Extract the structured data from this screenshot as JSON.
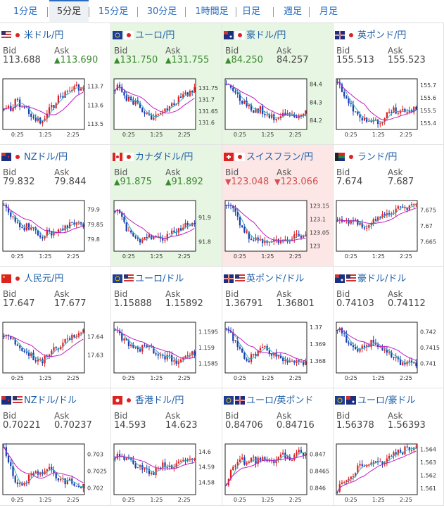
{
  "tabs": [
    {
      "label": "1分足",
      "active": false
    },
    {
      "label": "5分足",
      "active": true
    },
    {
      "label": "15分足",
      "active": false
    },
    {
      "label": "30分足",
      "active": false
    },
    {
      "label": "1時間足",
      "active": false
    },
    {
      "label": "日足",
      "active": false
    },
    {
      "label": "週足",
      "active": false
    },
    {
      "label": "月足",
      "active": false
    }
  ],
  "labels": {
    "bid": "Bid",
    "ask": "Ask"
  },
  "colors": {
    "candle_up": "#e02020",
    "candle_down": "#1a3fb0",
    "ma_short": "#3ab0c0",
    "ma_long": "#c020c0",
    "tile_up": "#e7f6e2",
    "tile_down": "#fce6e6"
  },
  "panels": [
    {
      "title": "米ドル/円",
      "bid": "113.688",
      "ask": "113.690",
      "dir": "",
      "bid_dir": "",
      "ask_dir": "up",
      "flags": [
        "us",
        "jp"
      ],
      "chart_data": {
        "type": "candlestick",
        "x_ticks": [
          "0:25",
          "1:25",
          "2:25"
        ],
        "y_ticks": [
          "113.7",
          "113.6",
          "113.5"
        ],
        "ylim": [
          113.47,
          113.74
        ],
        "shape": [
          0.6,
          0.55,
          0.7,
          0.4,
          0.5,
          0.55,
          0.6,
          0.7,
          0.85,
          0.8,
          0.9,
          0.75,
          0.6,
          0.55,
          0.4,
          0.35,
          0.3,
          0.25,
          0.2,
          0.15,
          0.18,
          0.22
        ]
      }
    },
    {
      "title": "ユーロ/円",
      "bid": "131.750",
      "ask": "131.755",
      "dir": "up",
      "bid_dir": "up",
      "ask_dir": "up",
      "flags": [
        "eu",
        "jp"
      ],
      "chart_data": {
        "type": "candlestick",
        "x_ticks": [
          "0:25",
          "1:25",
          "2:25"
        ],
        "y_ticks": [
          "131.75",
          "131.7",
          "131.65",
          "131.6"
        ],
        "ylim": [
          131.57,
          131.79
        ],
        "shape": [
          0.2,
          0.15,
          0.3,
          0.4,
          0.35,
          0.5,
          0.45,
          0.6,
          0.7,
          0.75,
          0.8,
          0.7,
          0.65,
          0.55,
          0.6,
          0.5,
          0.45,
          0.4,
          0.35,
          0.3,
          0.25,
          0.15
        ]
      }
    },
    {
      "title": "豪ドル/円",
      "bid": "84.250",
      "ask": "84.257",
      "dir": "up",
      "bid_dir": "up",
      "ask_dir": "",
      "flags": [
        "au",
        "jp"
      ],
      "chart_data": {
        "type": "candlestick",
        "x_ticks": [
          "0:25",
          "1:25",
          "2:25"
        ],
        "y_ticks": [
          "84.4",
          "84.3",
          "84.2"
        ],
        "ylim": [
          84.15,
          84.43
        ],
        "shape": [
          0.05,
          0.15,
          0.25,
          0.35,
          0.45,
          0.5,
          0.55,
          0.6,
          0.65,
          0.6,
          0.7,
          0.75,
          0.72,
          0.8,
          0.75,
          0.7,
          0.65,
          0.7,
          0.75,
          0.72,
          0.7,
          0.68
        ]
      }
    },
    {
      "title": "英ポンド/円",
      "bid": "155.513",
      "ask": "155.523",
      "dir": "",
      "bid_dir": "",
      "ask_dir": "",
      "flags": [
        "gb",
        "jp"
      ],
      "chart_data": {
        "type": "candlestick",
        "x_ticks": [
          "0:25",
          "1:25",
          "2:25"
        ],
        "y_ticks": [
          "155.7",
          "155.6",
          "155.5",
          "155.4"
        ],
        "ylim": [
          155.35,
          155.75
        ],
        "shape": [
          0.1,
          0.2,
          0.35,
          0.5,
          0.6,
          0.7,
          0.75,
          0.8,
          0.85,
          0.8,
          0.75,
          0.85,
          0.8,
          0.7,
          0.65,
          0.6,
          0.7,
          0.65,
          0.6,
          0.65,
          0.6,
          0.62
        ]
      }
    },
    {
      "title": "NZドル/円",
      "bid": "79.832",
      "ask": "79.844",
      "dir": "",
      "bid_dir": "",
      "ask_dir": "",
      "flags": [
        "nz",
        "jp"
      ],
      "chart_data": {
        "type": "candlestick",
        "x_ticks": [
          "0:25",
          "1:25",
          "2:25"
        ],
        "y_ticks": [
          "79.9",
          "79.85",
          "79.8"
        ],
        "ylim": [
          79.76,
          79.93
        ],
        "shape": [
          0.1,
          0.15,
          0.3,
          0.4,
          0.5,
          0.55,
          0.5,
          0.55,
          0.6,
          0.65,
          0.7,
          0.65,
          0.6,
          0.7,
          0.65,
          0.6,
          0.55,
          0.5,
          0.45,
          0.5,
          0.45,
          0.48
        ]
      }
    },
    {
      "title": "カナダドル/円",
      "bid": "91.875",
      "ask": "91.892",
      "dir": "up",
      "bid_dir": "up",
      "ask_dir": "up",
      "flags": [
        "ca",
        "jp"
      ],
      "chart_data": {
        "type": "candlestick",
        "x_ticks": [
          "0:25",
          "1:25",
          "2:25"
        ],
        "y_ticks": [
          "91.9",
          "91.8"
        ],
        "ylim": [
          91.76,
          91.97
        ],
        "shape": [
          0.2,
          0.25,
          0.4,
          0.55,
          0.6,
          0.7,
          0.75,
          0.8,
          0.7,
          0.65,
          0.75,
          0.7,
          0.8,
          0.75,
          0.7,
          0.65,
          0.6,
          0.55,
          0.5,
          0.45,
          0.5,
          0.48
        ]
      }
    },
    {
      "title": "スイスフラン/円",
      "bid": "123.048",
      "ask": "123.066",
      "dir": "down",
      "bid_dir": "dn",
      "ask_dir": "dn",
      "flags": [
        "ch",
        "jp"
      ],
      "chart_data": {
        "type": "candlestick",
        "x_ticks": [
          "0:25",
          "1:25",
          "2:25"
        ],
        "y_ticks": [
          "123.15",
          "123.1",
          "123.05",
          "123"
        ],
        "ylim": [
          122.98,
          123.17
        ],
        "shape": [
          0.05,
          0.1,
          0.2,
          0.35,
          0.5,
          0.6,
          0.7,
          0.75,
          0.8,
          0.75,
          0.8,
          0.85,
          0.8,
          0.75,
          0.8,
          0.75,
          0.78,
          0.72,
          0.7,
          0.72,
          0.68,
          0.66
        ]
      }
    },
    {
      "title": "ランド/円",
      "bid": "7.674",
      "ask": "7.687",
      "dir": "",
      "bid_dir": "",
      "ask_dir": "",
      "flags": [
        "za",
        "jp"
      ],
      "chart_data": {
        "type": "candlestick",
        "x_ticks": [
          "0:25",
          "1:25",
          "2:25"
        ],
        "y_ticks": [
          "7.675",
          "7.67",
          "7.665"
        ],
        "ylim": [
          7.662,
          7.678
        ],
        "shape": [
          0.45,
          0.4,
          0.42,
          0.45,
          0.4,
          0.42,
          0.45,
          0.5,
          0.55,
          0.45,
          0.4,
          0.35,
          0.3,
          0.28,
          0.25,
          0.2,
          0.15,
          0.1,
          0.12,
          0.15,
          0.1,
          0.12
        ]
      }
    },
    {
      "title": "人民元/円",
      "bid": "17.647",
      "ask": "17.677",
      "dir": "",
      "bid_dir": "",
      "ask_dir": "",
      "flags": [
        "cn",
        "jp"
      ],
      "chart_data": {
        "type": "candlestick",
        "x_ticks": [
          "0:25",
          "1:25",
          "2:25"
        ],
        "y_ticks": [
          "17.64",
          "17.63"
        ],
        "ylim": [
          17.62,
          17.648
        ],
        "shape": [
          0.3,
          0.2,
          0.35,
          0.4,
          0.5,
          0.6,
          0.55,
          0.65,
          0.7,
          0.75,
          0.8,
          0.7,
          0.6,
          0.55,
          0.5,
          0.45,
          0.4,
          0.35,
          0.3,
          0.25,
          0.2,
          0.15
        ]
      }
    },
    {
      "title": "ユーロ/ドル",
      "bid": "1.15888",
      "ask": "1.15892",
      "dir": "",
      "bid_dir": "",
      "ask_dir": "",
      "flags": [
        "eu",
        "us"
      ],
      "chart_data": {
        "type": "candlestick",
        "x_ticks": [
          "0:25",
          "1:25",
          "2:25"
        ],
        "y_ticks": [
          "1.1595",
          "1.159",
          "1.1585"
        ],
        "ylim": [
          1.1582,
          1.1598
        ],
        "shape": [
          0.15,
          0.25,
          0.35,
          0.4,
          0.45,
          0.5,
          0.55,
          0.5,
          0.45,
          0.5,
          0.55,
          0.6,
          0.65,
          0.7,
          0.65,
          0.75,
          0.8,
          0.75,
          0.7,
          0.65,
          0.6,
          0.62
        ]
      }
    },
    {
      "title": "英ポンド/ドル",
      "bid": "1.36791",
      "ask": "1.36801",
      "dir": "",
      "bid_dir": "",
      "ask_dir": "",
      "flags": [
        "gb",
        "us"
      ],
      "chart_data": {
        "type": "candlestick",
        "x_ticks": [
          "0:25",
          "1:25",
          "2:25"
        ],
        "y_ticks": [
          "1.37",
          "1.369",
          "1.368"
        ],
        "ylim": [
          1.3673,
          1.3703
        ],
        "shape": [
          0.1,
          0.2,
          0.35,
          0.5,
          0.6,
          0.7,
          0.75,
          0.65,
          0.6,
          0.55,
          0.5,
          0.55,
          0.6,
          0.65,
          0.7,
          0.75,
          0.8,
          0.78,
          0.75,
          0.8,
          0.82,
          0.8
        ]
      }
    },
    {
      "title": "豪ドル/ドル",
      "bid": "0.74103",
      "ask": "0.74112",
      "dir": "",
      "bid_dir": "",
      "ask_dir": "",
      "flags": [
        "au",
        "us"
      ],
      "chart_data": {
        "type": "candlestick",
        "x_ticks": [
          "0:25",
          "1:25",
          "2:25"
        ],
        "y_ticks": [
          "0.742",
          "0.7415",
          "0.741"
        ],
        "ylim": [
          0.7407,
          0.7423
        ],
        "shape": [
          0.1,
          0.2,
          0.3,
          0.4,
          0.5,
          0.6,
          0.55,
          0.5,
          0.45,
          0.4,
          0.45,
          0.5,
          0.55,
          0.6,
          0.65,
          0.7,
          0.75,
          0.8,
          0.85,
          0.82,
          0.8,
          0.85
        ]
      }
    },
    {
      "title": "NZドル/ドル",
      "bid": "0.70221",
      "ask": "0.70237",
      "dir": "",
      "bid_dir": "",
      "ask_dir": "",
      "flags": [
        "nz",
        "us"
      ],
      "chart_data": {
        "type": "candlestick",
        "x_ticks": [
          "0:25",
          "1:25",
          "2:25"
        ],
        "y_ticks": [
          "0.703",
          "0.7025",
          "0.702"
        ],
        "ylim": [
          0.7018,
          0.7033
        ],
        "shape": [
          0.1,
          0.3,
          0.5,
          0.7,
          0.8,
          0.85,
          0.75,
          0.6,
          0.5,
          0.55,
          0.6,
          0.55,
          0.5,
          0.6,
          0.65,
          0.7,
          0.75,
          0.7,
          0.75,
          0.8,
          0.82,
          0.85
        ]
      }
    },
    {
      "title": "香港ドル/円",
      "bid": "14.593",
      "ask": "14.623",
      "dir": "",
      "bid_dir": "",
      "ask_dir": "",
      "flags": [
        "hk",
        "jp"
      ],
      "chart_data": {
        "type": "candlestick",
        "x_ticks": [
          "0:25",
          "1:25",
          "2:25"
        ],
        "y_ticks": [
          "14.6",
          "14.59",
          "14.58"
        ],
        "ylim": [
          14.572,
          14.605
        ],
        "shape": [
          0.3,
          0.2,
          0.25,
          0.3,
          0.35,
          0.4,
          0.5,
          0.45,
          0.5,
          0.55,
          0.6,
          0.5,
          0.45,
          0.4,
          0.45,
          0.5,
          0.35,
          0.4,
          0.35,
          0.3,
          0.35,
          0.3
        ]
      }
    },
    {
      "title": "ユーロ/英ポンド",
      "bid": "0.84706",
      "ask": "0.84716",
      "dir": "",
      "bid_dir": "",
      "ask_dir": "",
      "flags": [
        "eu",
        "gb"
      ],
      "chart_data": {
        "type": "candlestick",
        "x_ticks": [
          "0:25",
          "1:25",
          "2:25"
        ],
        "y_ticks": [
          "0.847",
          "0.8465",
          "0.846"
        ],
        "ylim": [
          0.8458,
          0.8473
        ],
        "shape": [
          0.8,
          0.6,
          0.4,
          0.35,
          0.3,
          0.4,
          0.35,
          0.3,
          0.35,
          0.3,
          0.25,
          0.3,
          0.35,
          0.3,
          0.25,
          0.2,
          0.25,
          0.3,
          0.2,
          0.15,
          0.2,
          0.15
        ]
      }
    },
    {
      "title": "ユーロ/豪ドル",
      "bid": "1.56378",
      "ask": "1.56393",
      "dir": "",
      "bid_dir": "",
      "ask_dir": "",
      "flags": [
        "eu",
        "au"
      ],
      "chart_data": {
        "type": "candlestick",
        "x_ticks": [
          "0:25",
          "1:25",
          "2:25"
        ],
        "y_ticks": [
          "1.564",
          "1.563",
          "1.562",
          "1.561"
        ],
        "ylim": [
          1.5605,
          1.5644
        ],
        "shape": [
          0.9,
          0.8,
          0.7,
          0.65,
          0.6,
          0.5,
          0.45,
          0.5,
          0.4,
          0.35,
          0.4,
          0.3,
          0.35,
          0.3,
          0.25,
          0.2,
          0.15,
          0.2,
          0.1,
          0.08,
          0.1,
          0.05
        ]
      }
    }
  ]
}
